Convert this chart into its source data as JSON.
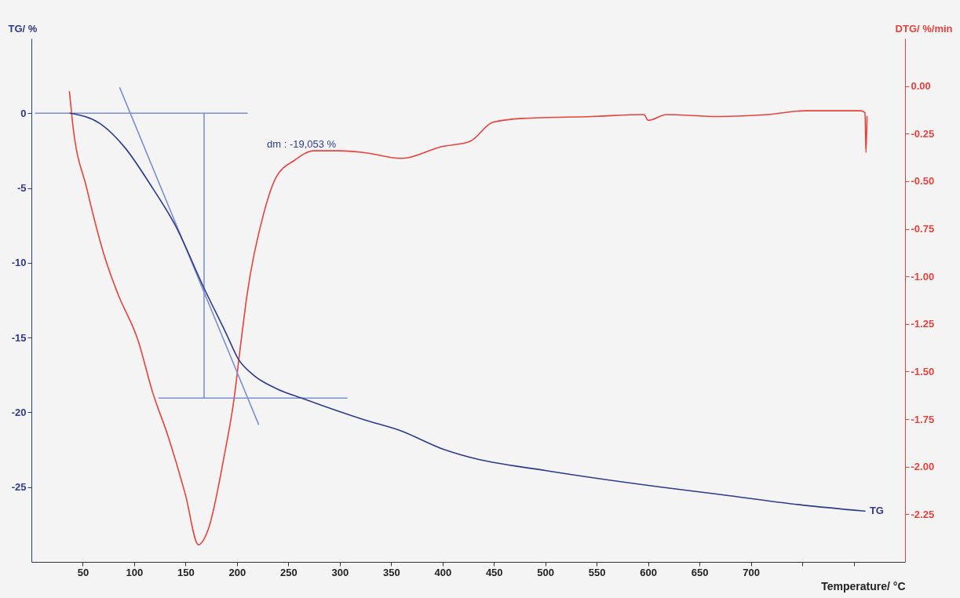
{
  "chart_data": {
    "type": "line",
    "xlabel": "Temperature/ °C",
    "ylabel": "TG/ %",
    "y2label": "DTG/ %/min",
    "xlim": [
      0,
      850
    ],
    "xticks": [
      50,
      100,
      150,
      200,
      250,
      300,
      350,
      400,
      450,
      500,
      550,
      600,
      650,
      700,
      {
        "value": 750,
        "label": null
      },
      {
        "value": 800,
        "label": null
      }
    ],
    "ylim": [
      -30,
      5
    ],
    "yticks": [
      0,
      -5,
      -10,
      -15,
      -20,
      -25
    ],
    "y2lim": [
      -2.5,
      0.25
    ],
    "y2ticks": [
      {
        "value": 0,
        "label": "0.00"
      },
      {
        "value": -0.25,
        "label": "-0.25"
      },
      {
        "value": -0.5,
        "label": "-0.50"
      },
      {
        "value": -0.75,
        "label": "-0.75"
      },
      {
        "value": -1,
        "label": "-1.00"
      },
      {
        "value": -1.25,
        "label": "-1.25"
      },
      {
        "value": -1.5,
        "label": "-1.50"
      },
      {
        "value": -1.75,
        "label": "-1.75"
      },
      {
        "value": -2,
        "label": "-2.00"
      },
      {
        "value": -2.25,
        "label": "-2.25"
      }
    ],
    "grid": false,
    "legend": false,
    "line_style": "solid",
    "annotations": [
      "dm : -19,053 %"
    ],
    "series": [
      {
        "color": "#7d8fd0",
        "x": [
          86,
          221
        ],
        "values": [
          1.7,
          -20.8
        ]
      },
      {
        "color": "#7d8fd0",
        "x": [
          4,
          210
        ],
        "values": [
          0,
          0
        ]
      },
      {
        "color": "#7d8fd0",
        "x": [
          124,
          307
        ],
        "values": [
          -19.05,
          -19.05
        ]
      },
      {
        "color": "#7d8fd0",
        "x": [
          168,
          168
        ],
        "values": [
          0,
          -19.05
        ]
      },
      {
        "color": "#e8413c",
        "axis": "y2",
        "x": [
          37,
          40,
          54,
          72,
          84,
          104,
          118,
          133,
          150,
          162.5,
          172,
          187,
          197,
          204,
          210,
          226,
          238,
          256,
          275,
          300,
          324,
          361,
          398,
          427,
          449,
          478,
          545,
          596,
          600,
          618,
          668,
          716,
          753,
          807,
          811,
          812,
          813
        ],
        "values": [
          -0.03,
          -0.19,
          -0.54,
          -0.91,
          -1.09,
          -1.34,
          -1.61,
          -1.84,
          -2.15,
          -2.41,
          -2.33,
          -1.96,
          -1.65,
          -1.34,
          -1.09,
          -0.67,
          -0.48,
          -0.39,
          -0.34,
          -0.34,
          -0.35,
          -0.38,
          -0.32,
          -0.29,
          -0.19,
          -0.17,
          -0.16,
          -0.15,
          -0.18,
          -0.15,
          -0.16,
          -0.15,
          -0.13,
          -0.13,
          -0.14,
          -0.35,
          -0.16
        ]
      },
      {
        "name": "TG",
        "color": "#2e3a8c",
        "x": [
          37.5,
          67,
          91,
          116,
          140,
          168,
          190,
          201,
          216,
          238,
          265,
          324,
          358,
          402,
          426,
          501,
          613,
          671,
          750,
          811
        ],
        "values": [
          0,
          -0.7,
          -2.3,
          -4.8,
          -7.5,
          -11.7,
          -14.8,
          -16.4,
          -17.5,
          -18.4,
          -19.1,
          -20.5,
          -21.2,
          -22.5,
          -23.0,
          -23.9,
          -25.0,
          -25.5,
          -26.2,
          -26.6
        ]
      }
    ]
  }
}
